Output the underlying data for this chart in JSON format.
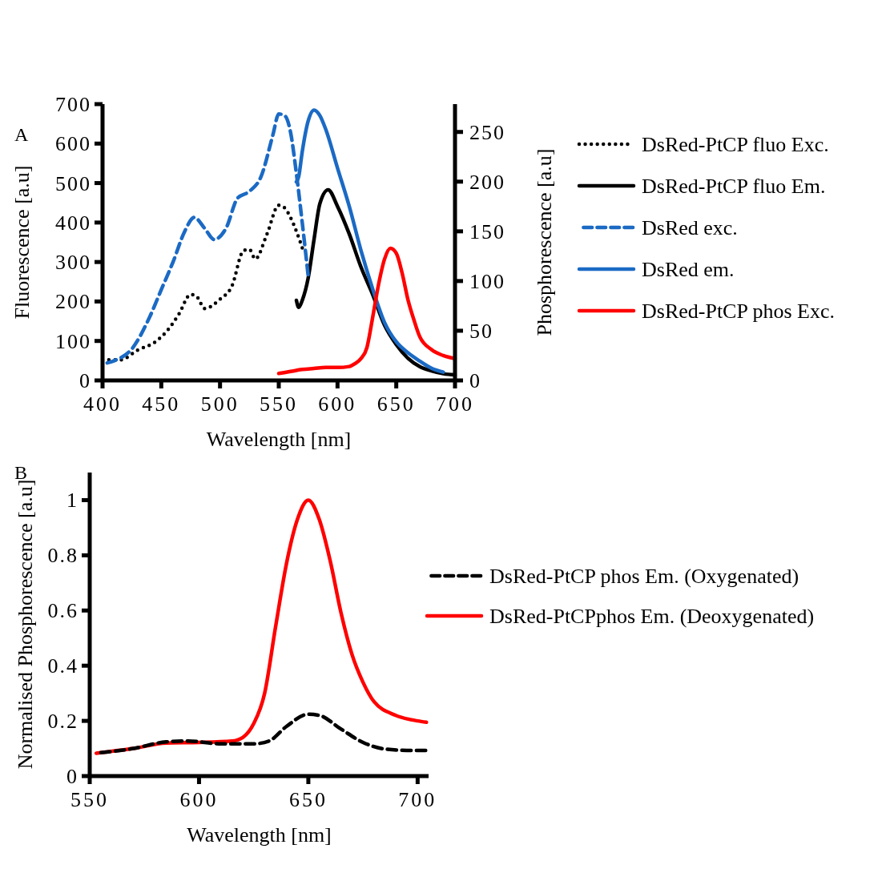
{
  "chart_data": [
    {
      "type": "line",
      "xlabel": "Wavelength [nm]",
      "ylabel": "Fluorescence [a.u]",
      "y2label": "Phosphorescence [a.u]",
      "annotations": [
        "A"
      ],
      "xlim": [
        400,
        700
      ],
      "xticks": [
        400,
        450,
        500,
        550,
        600,
        650,
        700
      ],
      "ylim": [
        0,
        700
      ],
      "yticks": [
        0,
        100,
        200,
        300,
        400,
        500,
        600,
        700
      ],
      "y2lim": [
        0,
        278
      ],
      "y2ticks": [
        0,
        50,
        100,
        150,
        200,
        250
      ],
      "legend": "right",
      "grid": false,
      "marker": "none",
      "series": [
        {
          "name": "DsRed-PtCP fluo Exc.",
          "color": "#000000",
          "line_style": "dotted",
          "x": [
            400,
            415,
            430,
            445,
            455,
            465,
            475,
            480,
            487,
            500,
            510,
            520,
            525,
            530,
            540,
            550,
            555,
            560,
            565,
            570
          ],
          "values": [
            52,
            52,
            77,
            98,
            126,
            168,
            218,
            213,
            182,
            206,
            238,
            329,
            332,
            308,
            371,
            444,
            437,
            413,
            378,
            336
          ]
        },
        {
          "name": "DsRed-PtCP fluo Em.",
          "color": "#000000",
          "line_style": "solid",
          "x": [
            565,
            567,
            570,
            575,
            580,
            585,
            592,
            600,
            610,
            620,
            630,
            640,
            650,
            660,
            670,
            680,
            690,
            700
          ],
          "values": [
            203,
            185,
            203,
            259,
            357,
            448,
            483,
            441,
            371,
            287,
            217,
            140,
            91,
            56,
            35,
            24,
            17,
            14
          ]
        },
        {
          "name": "DsRed exc.",
          "color": "#1b6ac4",
          "line_style": "dashed",
          "x": [
            400,
            410,
            425,
            440,
            450,
            460,
            470,
            478,
            487,
            495,
            505,
            515,
            525,
            535,
            545,
            550,
            555,
            560,
            565,
            570,
            575
          ],
          "values": [
            42,
            50,
            80,
            160,
            230,
            300,
            378,
            413,
            385,
            357,
            385,
            462,
            479,
            517,
            622,
            675,
            671,
            629,
            524,
            399,
            266
          ]
        },
        {
          "name": "DsRed em.",
          "color": "#1b6ac4",
          "line_style": "solid",
          "x": [
            565,
            567,
            570,
            575,
            580,
            585,
            590,
            600,
            610,
            620,
            630,
            640,
            650,
            660,
            670,
            680,
            690
          ],
          "values": [
            503,
            517,
            580,
            657,
            685,
            671,
            636,
            538,
            441,
            329,
            231,
            147,
            98,
            70,
            49,
            31,
            21
          ]
        },
        {
          "name": "DsRed-PtCP  phos Exc.",
          "color": "#ff0000",
          "line_style": "solid",
          "axis": "y2",
          "x": [
            550,
            560,
            570,
            580,
            590,
            600,
            610,
            615,
            620,
            625,
            630,
            635,
            640,
            645,
            650,
            655,
            660,
            665,
            670,
            680,
            690,
            700
          ],
          "values": [
            7,
            9,
            11,
            12,
            13,
            13,
            14,
            17,
            22,
            33,
            64,
            97,
            122,
            133,
            128,
            108,
            81,
            61,
            44,
            31,
            25,
            22
          ]
        }
      ]
    },
    {
      "type": "line",
      "xlabel": "Wavelength [nm]",
      "ylabel": "Normalised Phosphorescence [a.u]",
      "annotations": [
        "B"
      ],
      "xlim": [
        550,
        705
      ],
      "xticks": [
        550,
        600,
        650,
        700
      ],
      "ylim": [
        0,
        1.1
      ],
      "yticks": [
        0,
        0.2,
        0.4,
        0.6,
        0.8,
        1
      ],
      "legend": "right",
      "grid": false,
      "marker": "none",
      "series": [
        {
          "name": "DsRed-PtCP phos Em. (Oxygenated)",
          "color": "#000000",
          "line_style": "dashed",
          "x": [
            553,
            570,
            585,
            595,
            610,
            625,
            632,
            640,
            650,
            655,
            665,
            675,
            685,
            695,
            704
          ],
          "values": [
            0.083,
            0.1,
            0.124,
            0.127,
            0.117,
            0.117,
            0.127,
            0.18,
            0.224,
            0.22,
            0.17,
            0.122,
            0.098,
            0.093,
            0.093
          ]
        },
        {
          "name": "DsRed-PtCPphos Em. (Deoxygenated)",
          "color": "#ff0000",
          "line_style": "solid",
          "x": [
            553,
            570,
            585,
            600,
            615,
            620,
            625,
            630,
            635,
            640,
            645,
            650,
            655,
            660,
            665,
            670,
            675,
            680,
            690,
            700,
            704
          ],
          "values": [
            0.083,
            0.1,
            0.12,
            0.122,
            0.127,
            0.14,
            0.19,
            0.3,
            0.54,
            0.77,
            0.93,
            1,
            0.93,
            0.78,
            0.59,
            0.44,
            0.34,
            0.27,
            0.22,
            0.2,
            0.195
          ]
        }
      ]
    }
  ]
}
